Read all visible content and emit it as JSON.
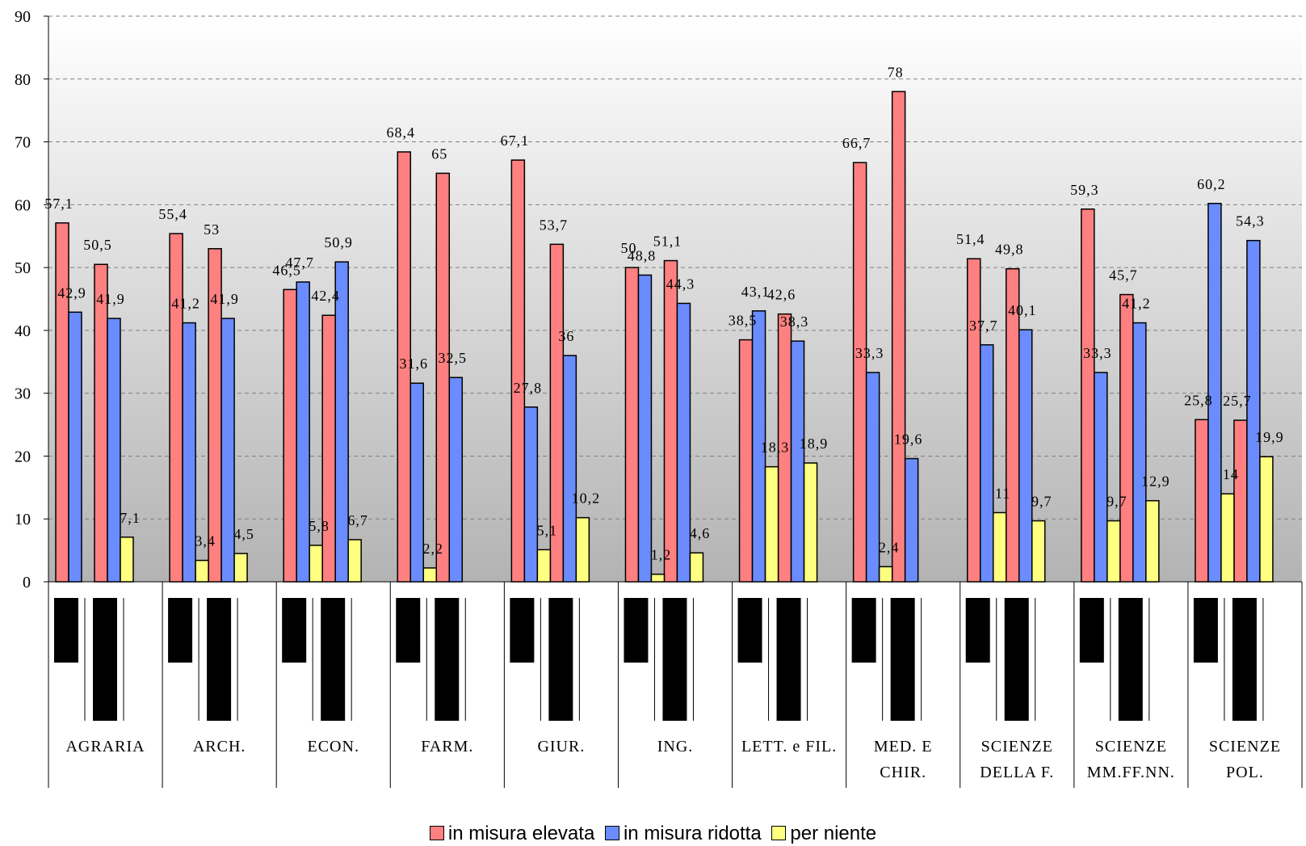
{
  "chart_data": {
    "type": "bar",
    "title": "",
    "xlabel": "",
    "ylabel": "",
    "ylim": [
      0,
      90
    ],
    "yticks": [
      0,
      10,
      20,
      30,
      40,
      50,
      60,
      70,
      80,
      90
    ],
    "grid": "horizontal-dashed",
    "legend_position": "bottom",
    "groups": [
      {
        "label": [
          "AGRARIA"
        ]
      },
      {
        "label": [
          "ARCH."
        ]
      },
      {
        "label": [
          "ECON."
        ]
      },
      {
        "label": [
          "FARM."
        ]
      },
      {
        "label": [
          "GIUR."
        ]
      },
      {
        "label": [
          "ING."
        ]
      },
      {
        "label": [
          "LETT. e FIL."
        ]
      },
      {
        "label": [
          "MED. E",
          "CHIR."
        ]
      },
      {
        "label": [
          "SCIENZE",
          "DELLA F."
        ]
      },
      {
        "label": [
          "SCIENZE",
          "MM.FF.NN."
        ]
      },
      {
        "label": [
          "SCIENZE",
          "POL."
        ]
      }
    ],
    "series": [
      {
        "name": "in misura elevata",
        "color": "#FF8080",
        "values": [
          57.1,
          50.5,
          55.4,
          53,
          46.5,
          42.4,
          68.4,
          65,
          67.1,
          53.7,
          50,
          51.1,
          38.5,
          42.6,
          66.7,
          78,
          51.4,
          49.8,
          59.3,
          45.7,
          25.8,
          25.7
        ],
        "labels": [
          "57,1",
          "50,5",
          "55,4",
          "53",
          "46,5",
          "42,4",
          "68,4",
          "65",
          "67,1",
          "53,7",
          "50",
          "51,1",
          "38,5",
          "42,6",
          "66,7",
          "78",
          "51,4",
          "49,8",
          "59,3",
          "45,7",
          "25,8",
          "25,7"
        ]
      },
      {
        "name": "in misura ridotta",
        "color": "#6A8CFF",
        "values": [
          42.9,
          41.9,
          41.2,
          41.9,
          47.7,
          50.9,
          31.6,
          32.5,
          27.8,
          36,
          48.8,
          44.3,
          43.1,
          38.3,
          33.3,
          19.6,
          37.7,
          40.1,
          33.3,
          41.2,
          60.2,
          54.3
        ],
        "labels": [
          "42,9",
          "41,9",
          "41,2",
          "41,9",
          "47,7",
          "50,9",
          "31,6",
          "32,5",
          "27,8",
          "36",
          "48,8",
          "44,3",
          "43,1",
          "38,3",
          "33,3",
          "19,6",
          "37,7",
          "40,1",
          "33,3",
          "41,2",
          "60,2",
          "54,3"
        ]
      },
      {
        "name": "per niente",
        "color": "#FFFF80",
        "values": [
          null,
          7.1,
          null,
          3.4,
          null,
          5.8,
          null,
          2.2,
          null,
          5.1,
          null,
          1.2,
          null,
          18.3,
          null,
          2.4,
          null,
          11,
          null,
          9.7,
          null,
          14
        ],
        "labels": [
          null,
          "7,1",
          null,
          "3,4",
          null,
          "5,8",
          null,
          "2,2",
          null,
          "5,1",
          null,
          "1,2",
          null,
          "18,3",
          null,
          "2,4",
          null,
          "11",
          null,
          "9,7",
          null,
          "14"
        ]
      }
    ],
    "extra_bars": [
      {
        "index": 6,
        "series": 2,
        "value": 4.5,
        "label": "4,5"
      },
      {
        "index": 10,
        "series": 2,
        "value": 6.7,
        "label": "6,7"
      },
      {
        "index": 18,
        "series": 2,
        "value": 10.2,
        "label": "10,2"
      },
      {
        "index": 22,
        "series": 2,
        "value": 4.6,
        "label": "4,6"
      },
      {
        "index": 26,
        "series": 2,
        "value": 18.9,
        "label": "18,9"
      },
      {
        "index": 34,
        "series": 2,
        "value": 9.7,
        "label": "9,7"
      },
      {
        "index": 38,
        "series": 2,
        "value": 12.9,
        "label": "12,9"
      },
      {
        "index": 42,
        "series": 2,
        "value": 19.9,
        "label": "19,9"
      }
    ]
  }
}
